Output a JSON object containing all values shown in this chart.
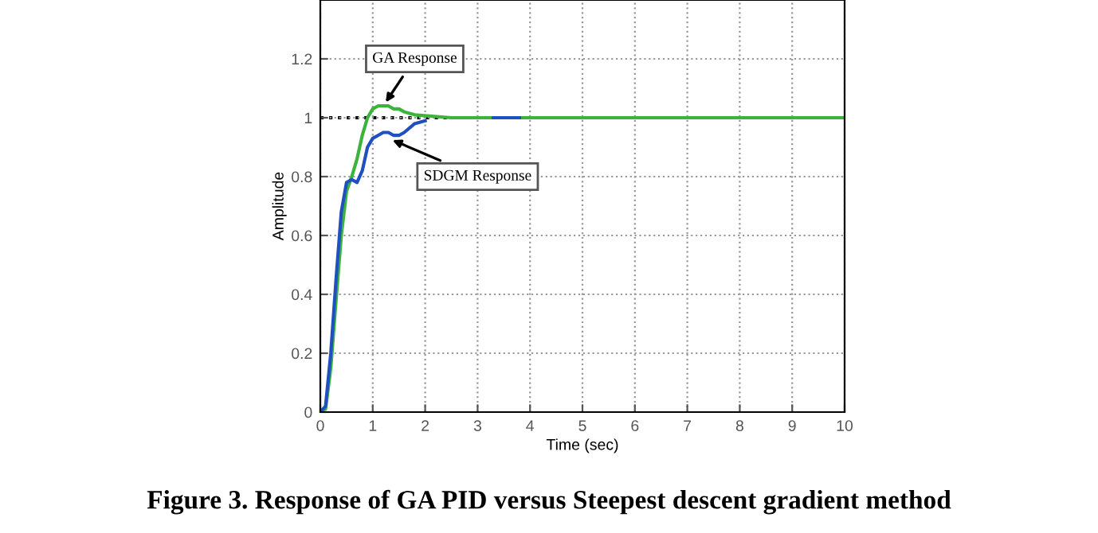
{
  "chart_data": {
    "type": "line",
    "title": "Figure 3. Response of GA PID versus Steepest descent gradient method",
    "xlabel": "Time (sec)",
    "ylabel": "Amplitude",
    "series": [
      {
        "color": "#3cb43c",
        "x": [
          0,
          0.1,
          0.2,
          0.3,
          0.4,
          0.5,
          0.6,
          0.7,
          0.8,
          0.9,
          1.0,
          1.1,
          1.2,
          1.3,
          1.4,
          1.5,
          1.6,
          1.8,
          2.5,
          3,
          4,
          5,
          6,
          7,
          8,
          9,
          10
        ],
        "values": [
          0,
          0.01,
          0.15,
          0.38,
          0.6,
          0.75,
          0.8,
          0.86,
          0.94,
          1.0,
          1.03,
          1.04,
          1.04,
          1.04,
          1.03,
          1.03,
          1.02,
          1.01,
          1.0,
          1.0,
          1.0,
          1.0,
          1.0,
          1.0,
          1.0,
          1.0,
          1.0
        ]
      },
      {
        "color": "#2050c0",
        "x": [
          0,
          0.1,
          0.2,
          0.3,
          0.4,
          0.5,
          0.6,
          0.7,
          0.8,
          0.9,
          1.0,
          1.1,
          1.2,
          1.3,
          1.4,
          1.5,
          1.6,
          1.8,
          2.0,
          2.5,
          3.3,
          3.8
        ],
        "values": [
          0,
          0.02,
          0.2,
          0.45,
          0.68,
          0.78,
          0.79,
          0.78,
          0.82,
          0.9,
          0.93,
          0.94,
          0.95,
          0.95,
          0.94,
          0.94,
          0.95,
          0.98,
          0.99,
          null,
          1.0,
          1.0
        ]
      }
    ],
    "ref_lines": [
      {
        "axis": "y",
        "value": 1,
        "color": "#000000",
        "line_style": "dotted"
      }
    ],
    "annotations": [
      {
        "text": "GA Response",
        "x": 1.2,
        "y": 1.04
      },
      {
        "text": "SDGM Response",
        "x": 1.3,
        "y": 0.93
      }
    ],
    "xlim": [
      0,
      10
    ],
    "ylim": [
      0,
      1.4
    ],
    "xticks": [
      0,
      1,
      2,
      3,
      4,
      5,
      6,
      7,
      8,
      9,
      10
    ],
    "yticks": [
      0,
      0.2,
      0.4,
      0.6,
      0.8,
      1,
      1.2
    ],
    "grid": true
  }
}
